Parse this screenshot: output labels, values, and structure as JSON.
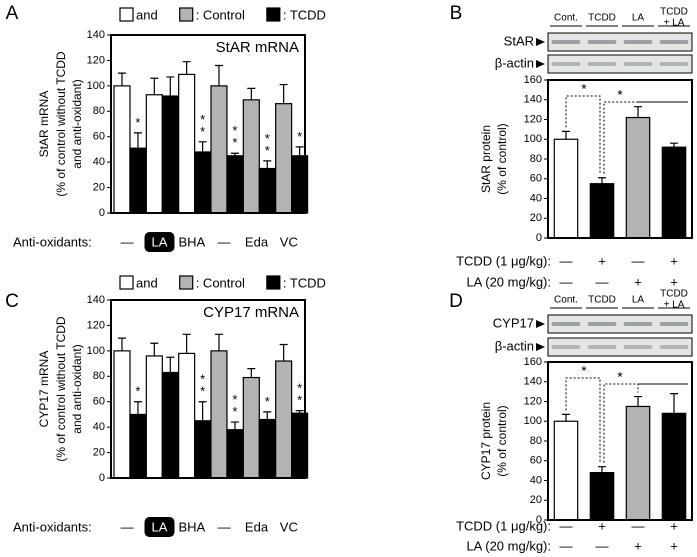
{
  "chart_data": [
    {
      "type": "grouped_bar",
      "panel": "A",
      "title": "StAR mRNA",
      "y_label": [
        "StAR mRNA",
        "(% of control without TCDD",
        "and anti-oxidant)"
      ],
      "legend": [
        {
          "color": "#ffffff",
          "label": "and"
        },
        {
          "color": "#b3b3b3",
          "label": ": Control"
        },
        {
          "color": "#000000",
          "label": ": TCDD"
        }
      ],
      "x_label": "Anti-oxidants:",
      "categories": [
        "—",
        "LA",
        "BHA",
        "—",
        "Eda",
        "VC"
      ],
      "highlight": [
        false,
        true,
        false,
        false,
        false,
        false
      ],
      "series": [
        {
          "colors": [
            "#ffffff",
            "#ffffff",
            "#ffffff",
            "#b3b3b3",
            "#b3b3b3",
            "#b3b3b3"
          ],
          "values": [
            100,
            93,
            109,
            100,
            89,
            86
          ],
          "errors": [
            10,
            13,
            10,
            16,
            9,
            15
          ]
        },
        {
          "color": "#000000",
          "values": [
            51,
            92,
            48,
            45,
            35,
            45
          ],
          "errors": [
            12,
            15,
            8,
            2,
            6,
            7
          ],
          "annotations": [
            "*",
            null,
            "**",
            "**",
            "**",
            "*"
          ]
        }
      ],
      "ylim": [
        0,
        140
      ],
      "yticks": [
        0,
        20,
        40,
        60,
        80,
        100,
        120,
        140
      ]
    },
    {
      "type": "bar",
      "panel": "B",
      "blot": {
        "lanes": [
          "Cont.",
          "TCDD",
          "LA",
          [
            "TCDD",
            "+ LA"
          ]
        ],
        "rows": [
          "StAR",
          "β-actin"
        ]
      },
      "y_label": [
        "StAR protein",
        "(% of control)"
      ],
      "values": [
        100,
        55,
        122,
        92
      ],
      "errors": [
        8,
        6,
        11,
        4
      ],
      "colors": [
        "#ffffff",
        "#000000",
        "#b3b3b3",
        "#000000"
      ],
      "conditions": [
        {
          "label": "TCDD (1 μg/kg):",
          "values": [
            "—",
            "+",
            "—",
            "+"
          ]
        },
        {
          "label": "LA (20 mg/kg):",
          "values": [
            "—",
            "—",
            "+",
            "+"
          ]
        }
      ],
      "significance": [
        "*",
        "*"
      ],
      "ylim": [
        0,
        160
      ],
      "yticks": [
        0,
        20,
        40,
        60,
        80,
        100,
        120,
        140,
        160
      ]
    },
    {
      "type": "grouped_bar",
      "panel": "C",
      "title": "CYP17 mRNA",
      "y_label": [
        "CYP17 mRNA",
        "(% of control without TCDD",
        "and anti-oxidant)"
      ],
      "legend": [
        {
          "color": "#ffffff",
          "label": "and"
        },
        {
          "color": "#b3b3b3",
          "label": ": Control"
        },
        {
          "color": "#000000",
          "label": ": TCDD"
        }
      ],
      "x_label": "Anti-oxidants:",
      "categories": [
        "—",
        "LA",
        "BHA",
        "—",
        "Eda",
        "VC"
      ],
      "highlight": [
        false,
        true,
        false,
        false,
        false,
        false
      ],
      "series": [
        {
          "colors": [
            "#ffffff",
            "#ffffff",
            "#ffffff",
            "#b3b3b3",
            "#b3b3b3",
            "#b3b3b3"
          ],
          "values": [
            100,
            96,
            98,
            100,
            79,
            92
          ],
          "errors": [
            10,
            10,
            15,
            13,
            7,
            13
          ]
        },
        {
          "color": "#000000",
          "values": [
            50,
            83,
            45,
            38,
            46,
            51
          ],
          "errors": [
            10,
            12,
            15,
            6,
            6,
            2
          ],
          "annotations": [
            "*",
            null,
            "**",
            "**",
            "*",
            "**"
          ]
        }
      ],
      "ylim": [
        0,
        140
      ],
      "yticks": [
        0,
        20,
        40,
        60,
        80,
        100,
        120,
        140
      ]
    },
    {
      "type": "bar",
      "panel": "D",
      "blot": {
        "lanes": [
          "Cont.",
          "TCDD",
          "LA",
          [
            "TCDD",
            "+ LA"
          ]
        ],
        "rows": [
          "CYP17",
          "β-actin"
        ]
      },
      "y_label": [
        "CYP17 protein",
        "(% of control)"
      ],
      "values": [
        100,
        48,
        115,
        108
      ],
      "errors": [
        7,
        6,
        10,
        20
      ],
      "colors": [
        "#ffffff",
        "#000000",
        "#b3b3b3",
        "#000000"
      ],
      "conditions": [
        {
          "label": "TCDD (1 μg/kg):",
          "values": [
            "—",
            "+",
            "—",
            "+"
          ]
        },
        {
          "label": "LA (20 mg/kg):",
          "values": [
            "—",
            "—",
            "+",
            "+"
          ]
        }
      ],
      "significance": [
        "*",
        "*"
      ],
      "ylim": [
        0,
        160
      ],
      "yticks": [
        0,
        20,
        40,
        60,
        80,
        100,
        120,
        140,
        160
      ]
    }
  ]
}
